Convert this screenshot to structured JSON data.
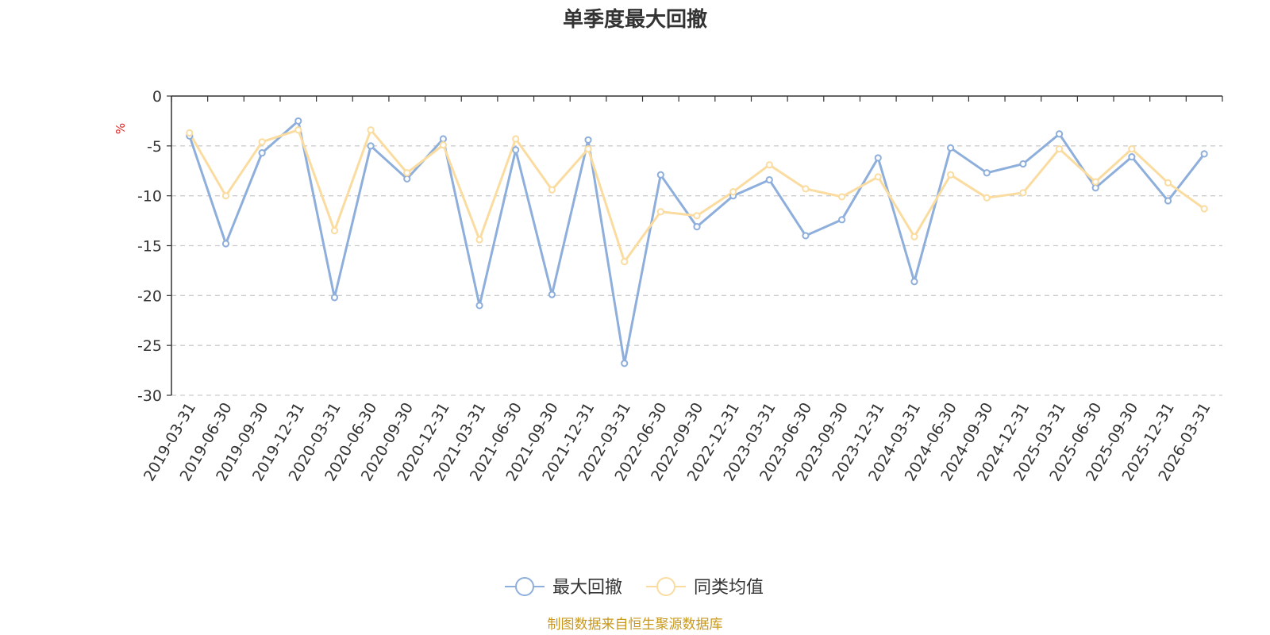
{
  "chart_data": {
    "type": "line",
    "title": "单季度最大回撤",
    "ylabel": "%",
    "ylim": [
      -30,
      0
    ],
    "yticks": [
      0,
      -5,
      -10,
      -15,
      -20,
      -25,
      -30
    ],
    "grid": "horizontal dashed",
    "legend_position": "bottom-center",
    "categories": [
      "2019-03-31",
      "2019-06-30",
      "2019-09-30",
      "2019-12-31",
      "2020-03-31",
      "2020-06-30",
      "2020-09-30",
      "2020-12-31",
      "2021-03-31",
      "2021-06-30",
      "2021-09-30",
      "2021-12-31",
      "2022-03-31",
      "2022-06-30",
      "2022-09-30",
      "2022-12-31",
      "2023-03-31",
      "2023-06-30",
      "2023-09-30",
      "2023-12-31",
      "2024-03-31",
      "2024-06-30",
      "2024-09-30",
      "2024-12-31",
      "2025-03-31",
      "2025-06-30",
      "2025-09-30",
      "2025-12-31",
      "2026-03-31"
    ],
    "series": [
      {
        "name": "最大回撤",
        "color": "#8eaedb",
        "values": [
          -4.0,
          -14.8,
          -5.7,
          -2.5,
          -20.2,
          -5.0,
          -8.3,
          -4.3,
          -21.0,
          -5.4,
          -19.9,
          -4.4,
          -26.8,
          -7.9,
          -13.1,
          -10.0,
          -8.4,
          -14.0,
          -12.4,
          -6.2,
          -18.6,
          -5.2,
          -7.7,
          -6.8,
          -3.8,
          -9.2,
          -6.1,
          -10.5,
          -5.8
        ]
      },
      {
        "name": "同类均值",
        "color": "#fbdca0",
        "values": [
          -3.7,
          -10.0,
          -4.6,
          -3.4,
          -13.5,
          -3.4,
          -7.7,
          -4.9,
          -14.4,
          -4.3,
          -9.4,
          -5.3,
          -16.6,
          -11.6,
          -12.0,
          -9.6,
          -6.9,
          -9.3,
          -10.1,
          -8.1,
          -14.1,
          -7.9,
          -10.2,
          -9.7,
          -5.3,
          -8.6,
          -5.3,
          -8.7,
          -11.3
        ]
      }
    ]
  },
  "footer": {
    "source": "制图数据来自恒生聚源数据库"
  }
}
